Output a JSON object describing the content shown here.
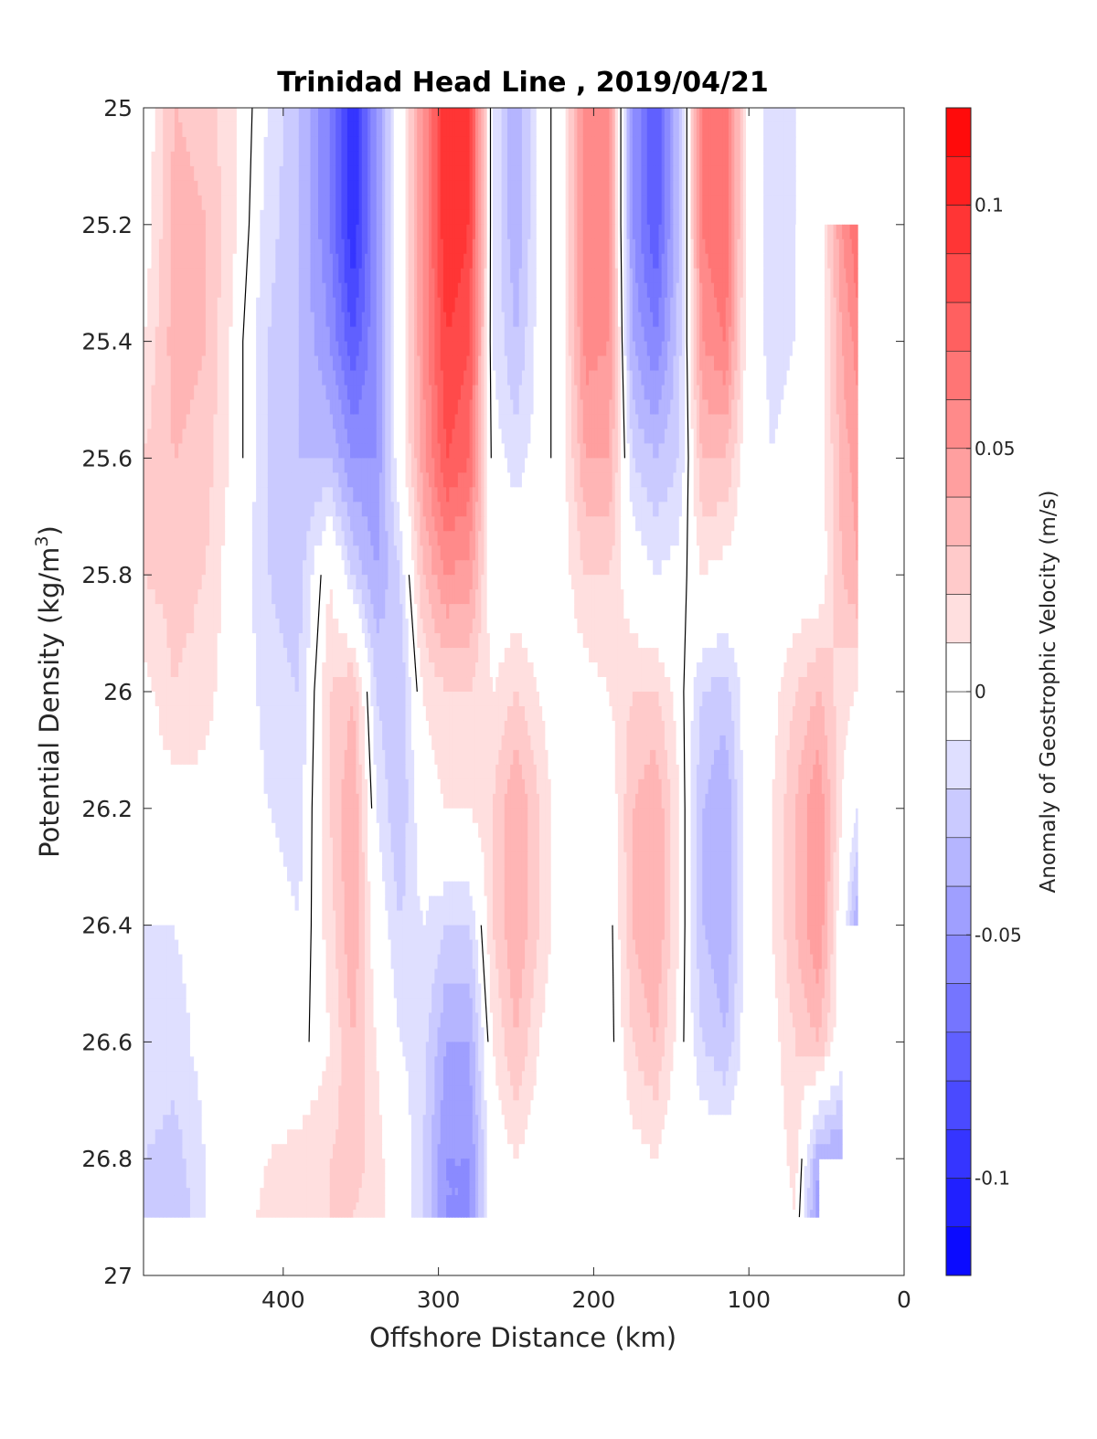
{
  "chart_data": {
    "type": "heatmap",
    "title": "Trinidad Head Line , 2019/04/21",
    "xlabel": "Offshore Distance (km)",
    "ylabel": "Potential Density (kg/m",
    "ylabel_sup": "3",
    "ylabel_close": ")",
    "xlim": [
      490,
      0
    ],
    "ylim": [
      25,
      27
    ],
    "x_reversed": true,
    "y_reversed": true,
    "x_ticks": [
      400,
      300,
      200,
      100,
      0
    ],
    "x_tick_labels": [
      "400",
      "300",
      "200",
      "100",
      "0"
    ],
    "y_ticks": [
      25,
      25.2,
      25.4,
      25.6,
      25.8,
      26,
      26.2,
      26.4,
      26.6,
      26.8,
      27
    ],
    "y_tick_labels": [
      "25",
      "25.2",
      "25.4",
      "25.6",
      "25.8",
      "26",
      "26.2",
      "26.4",
      "26.6",
      "26.8",
      "27"
    ],
    "data_bottom_density": 26.9,
    "colorbar": {
      "label": "Anomaly of Geostrophic Velocity (m/s)",
      "range": [
        -0.12,
        0.12
      ],
      "levels": 24,
      "ticks": [
        0.1,
        0.05,
        0,
        -0.05,
        -0.1
      ],
      "tick_labels": [
        "0.1",
        "0.05",
        "0",
        "-0.05",
        "-0.1"
      ],
      "colormap": "blue-white-red",
      "negative_color": "#0000ff",
      "zero_color": "#ffffff",
      "positive_color": "#ff0000"
    },
    "x": [
      490,
      470,
      450,
      430,
      410,
      390,
      370,
      355,
      340,
      325,
      310,
      295,
      280,
      265,
      250,
      235,
      220,
      205,
      190,
      175,
      160,
      145,
      130,
      115,
      100,
      85,
      70,
      55,
      40,
      30
    ],
    "y": [
      25.0,
      25.2,
      25.4,
      25.6,
      25.8,
      26.0,
      26.2,
      26.4,
      26.6,
      26.8,
      26.9
    ],
    "z": [
      [
        0.0,
        0.03,
        0.025,
        0.01,
        -0.01,
        -0.03,
        -0.06,
        -0.1,
        -0.05,
        0.0,
        0.05,
        0.1,
        0.09,
        -0.01,
        -0.04,
        -0.005,
        0.005,
        0.06,
        0.05,
        -0.05,
        -0.08,
        -0.03,
        0.06,
        0.07,
        0.0,
        -0.015,
        -0.01,
        0.0,
        0.0,
        0.0
      ],
      [
        0.0,
        0.035,
        0.03,
        0.01,
        -0.015,
        -0.03,
        -0.06,
        -0.1,
        -0.05,
        0.0,
        0.05,
        0.1,
        0.09,
        -0.01,
        -0.04,
        -0.005,
        0.005,
        0.06,
        0.05,
        -0.05,
        -0.08,
        -0.03,
        0.06,
        0.07,
        0.0,
        -0.015,
        -0.01,
        0.0,
        0.05,
        0.07
      ],
      [
        0.01,
        0.035,
        0.03,
        0.005,
        -0.02,
        -0.03,
        -0.05,
        -0.08,
        -0.05,
        0.0,
        0.05,
        0.09,
        0.08,
        -0.01,
        -0.03,
        -0.005,
        0.005,
        0.055,
        0.05,
        -0.04,
        -0.06,
        -0.025,
        0.05,
        0.06,
        0.0,
        -0.015,
        -0.01,
        0.0,
        0.04,
        0.055
      ],
      [
        0.02,
        0.03,
        0.025,
        0.005,
        -0.02,
        -0.03,
        -0.03,
        -0.05,
        -0.05,
        0.0,
        0.045,
        0.08,
        0.07,
        -0.005,
        -0.015,
        -0.005,
        0.005,
        0.04,
        0.04,
        -0.02,
        -0.03,
        -0.02,
        0.03,
        0.03,
        0.0,
        -0.01,
        -0.005,
        0.0,
        0.035,
        0.045
      ],
      [
        0.02,
        0.025,
        0.02,
        0.0,
        -0.02,
        -0.025,
        0.01,
        -0.02,
        -0.04,
        -0.02,
        0.03,
        0.05,
        0.045,
        0.0,
        0.0,
        0.0,
        0.005,
        0.02,
        0.02,
        0.0,
        -0.01,
        -0.005,
        0.01,
        0.005,
        0.0,
        -0.005,
        0.0,
        0.0,
        0.03,
        0.04
      ],
      [
        0.005,
        0.02,
        0.015,
        0.0,
        -0.015,
        -0.02,
        0.02,
        0.03,
        -0.02,
        -0.03,
        0.01,
        0.02,
        0.02,
        0.01,
        0.02,
        0.01,
        0.0,
        0.005,
        0.01,
        0.02,
        0.02,
        0.005,
        -0.02,
        -0.025,
        0.0,
        0.005,
        0.02,
        0.03,
        0.015,
        0.01
      ],
      [
        0.0,
        0.005,
        0.005,
        0.0,
        -0.01,
        -0.015,
        0.02,
        0.04,
        -0.01,
        -0.03,
        0.0,
        0.01,
        0.01,
        0.02,
        0.04,
        0.02,
        0.0,
        -0.005,
        0.0,
        0.03,
        0.04,
        0.01,
        -0.03,
        -0.04,
        0.0,
        0.01,
        0.03,
        0.05,
        0.01,
        -0.01
      ],
      [
        -0.01,
        -0.01,
        -0.005,
        0.0,
        -0.005,
        -0.01,
        0.015,
        0.04,
        0.0,
        -0.02,
        -0.01,
        -0.02,
        -0.02,
        0.02,
        0.04,
        0.02,
        0.0,
        -0.01,
        -0.005,
        0.03,
        0.04,
        0.01,
        -0.03,
        -0.04,
        0.0,
        0.01,
        0.03,
        0.05,
        0.0,
        -0.04
      ],
      [
        -0.01,
        -0.015,
        -0.005,
        0.0,
        0.0,
        -0.005,
        0.01,
        0.03,
        0.01,
        -0.01,
        -0.015,
        -0.04,
        -0.04,
        0.01,
        0.03,
        0.01,
        0.0,
        -0.01,
        -0.005,
        0.02,
        0.03,
        0.005,
        -0.02,
        -0.03,
        0.0,
        0.005,
        0.02,
        0.03,
        0.0,
        0.0
      ],
      [
        -0.02,
        -0.025,
        -0.01,
        0.0,
        0.01,
        0.015,
        0.02,
        0.025,
        0.015,
        0.0,
        -0.02,
        -0.05,
        -0.05,
        0.0,
        0.01,
        0.0,
        0.0,
        -0.01,
        0.0,
        0.005,
        0.01,
        0.0,
        0.0,
        0.0,
        0.0,
        0.0,
        0.015,
        -0.04,
        -0.04,
        0.0
      ],
      [
        -0.02,
        -0.03,
        -0.01,
        0.0,
        0.015,
        0.02,
        0.02,
        0.02,
        0.015,
        0.0,
        -0.02,
        -0.05,
        -0.05,
        0.0,
        0.0,
        0.0,
        0.0,
        -0.01,
        0.0,
        0.0,
        0.0,
        0.0,
        0.0,
        0.0,
        0.0,
        0.0,
        0.01,
        -0.05,
        -0.05,
        0.0
      ]
    ],
    "z_mask": [
      [
        1,
        1,
        1,
        1,
        1,
        1,
        1,
        1,
        1,
        1,
        1,
        1,
        1,
        1,
        1,
        1,
        1,
        1,
        1,
        1,
        1,
        1,
        1,
        1,
        1,
        1,
        1,
        0,
        0,
        0
      ],
      [
        1,
        1,
        1,
        1,
        1,
        1,
        1,
        1,
        1,
        1,
        1,
        1,
        1,
        1,
        1,
        1,
        1,
        1,
        1,
        1,
        1,
        1,
        1,
        1,
        1,
        1,
        1,
        1,
        1,
        1
      ],
      [
        1,
        1,
        1,
        1,
        1,
        1,
        1,
        1,
        1,
        1,
        1,
        1,
        1,
        1,
        1,
        1,
        1,
        1,
        1,
        1,
        1,
        1,
        1,
        1,
        1,
        1,
        1,
        1,
        1,
        1
      ],
      [
        1,
        1,
        1,
        1,
        1,
        1,
        1,
        1,
        1,
        1,
        1,
        1,
        1,
        1,
        1,
        1,
        1,
        1,
        1,
        1,
        1,
        1,
        1,
        1,
        1,
        1,
        1,
        1,
        1,
        1
      ],
      [
        1,
        1,
        1,
        1,
        1,
        1,
        1,
        1,
        1,
        1,
        1,
        1,
        1,
        1,
        1,
        1,
        1,
        1,
        1,
        1,
        1,
        1,
        1,
        1,
        1,
        1,
        1,
        1,
        1,
        1
      ],
      [
        1,
        1,
        1,
        1,
        1,
        1,
        1,
        1,
        1,
        1,
        1,
        1,
        1,
        1,
        1,
        1,
        1,
        1,
        1,
        1,
        1,
        1,
        1,
        1,
        1,
        1,
        1,
        1,
        1,
        1
      ],
      [
        1,
        1,
        1,
        1,
        1,
        1,
        1,
        1,
        1,
        1,
        1,
        1,
        1,
        1,
        1,
        1,
        1,
        1,
        1,
        1,
        1,
        1,
        1,
        1,
        1,
        1,
        1,
        1,
        1,
        1
      ],
      [
        1,
        1,
        1,
        1,
        1,
        1,
        1,
        1,
        1,
        1,
        1,
        1,
        1,
        1,
        1,
        1,
        1,
        1,
        1,
        1,
        1,
        1,
        1,
        1,
        1,
        1,
        1,
        1,
        1,
        1
      ],
      [
        1,
        1,
        1,
        1,
        1,
        1,
        1,
        1,
        1,
        1,
        1,
        1,
        1,
        1,
        1,
        1,
        1,
        1,
        1,
        1,
        1,
        1,
        1,
        1,
        1,
        1,
        1,
        1,
        1,
        0
      ],
      [
        1,
        1,
        1,
        1,
        1,
        1,
        1,
        1,
        1,
        1,
        1,
        1,
        1,
        1,
        1,
        1,
        1,
        1,
        1,
        1,
        1,
        1,
        1,
        1,
        1,
        1,
        1,
        1,
        1,
        0
      ],
      [
        1,
        1,
        1,
        1,
        1,
        1,
        1,
        1,
        1,
        1,
        1,
        1,
        1,
        1,
        1,
        1,
        1,
        1,
        1,
        1,
        1,
        1,
        1,
        1,
        1,
        1,
        1,
        1,
        0,
        0
      ]
    ]
  }
}
